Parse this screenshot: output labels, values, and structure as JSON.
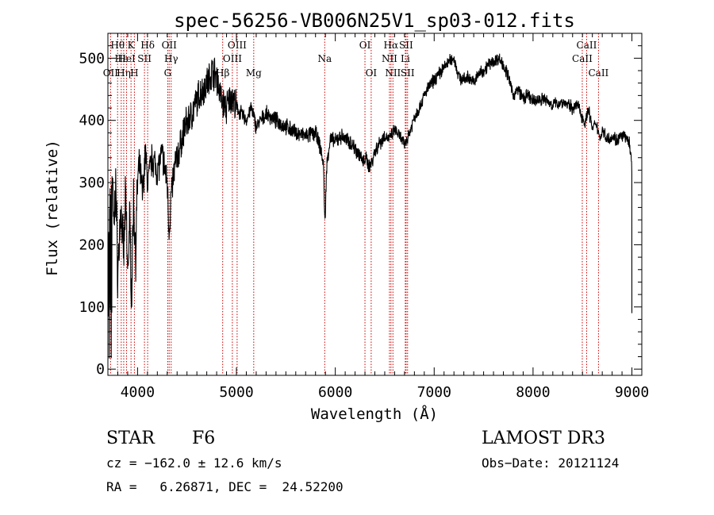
{
  "chart_data": {
    "type": "line",
    "title": "spec-56256-VB006N25V1_sp03-012.fits",
    "xlabel": "Wavelength (Å)",
    "ylabel": "Flux (relative)",
    "xlim": [
      3700,
      9100
    ],
    "ylim": [
      -10,
      540
    ],
    "x_ticks": [
      4000,
      5000,
      6000,
      7000,
      8000,
      9000
    ],
    "y_ticks": [
      0,
      100,
      200,
      300,
      400,
      500
    ],
    "spectrum_anchors": [
      [
        3700,
        60
      ],
      [
        3720,
        300
      ],
      [
        3740,
        330
      ],
      [
        3760,
        220
      ],
      [
        3780,
        300
      ],
      [
        3800,
        150
      ],
      [
        3830,
        260
      ],
      [
        3860,
        180
      ],
      [
        3880,
        280
      ],
      [
        3900,
        150
      ],
      [
        3920,
        240
      ],
      [
        3940,
        120
      ],
      [
        3960,
        280
      ],
      [
        3980,
        180
      ],
      [
        4000,
        300
      ],
      [
        4020,
        330
      ],
      [
        4050,
        280
      ],
      [
        4080,
        350
      ],
      [
        4100,
        300
      ],
      [
        4150,
        340
      ],
      [
        4200,
        320
      ],
      [
        4250,
        345
      ],
      [
        4300,
        300
      ],
      [
        4320,
        220
      ],
      [
        4340,
        280
      ],
      [
        4380,
        330
      ],
      [
        4420,
        350
      ],
      [
        4480,
        390
      ],
      [
        4550,
        410
      ],
      [
        4620,
        440
      ],
      [
        4700,
        460
      ],
      [
        4760,
        480
      ],
      [
        4800,
        470
      ],
      [
        4850,
        430
      ],
      [
        4900,
        420
      ],
      [
        4950,
        440
      ],
      [
        5000,
        420
      ],
      [
        5050,
        410
      ],
      [
        5100,
        400
      ],
      [
        5150,
        420
      ],
      [
        5200,
        390
      ],
      [
        5300,
        410
      ],
      [
        5400,
        400
      ],
      [
        5500,
        390
      ],
      [
        5600,
        380
      ],
      [
        5700,
        375
      ],
      [
        5800,
        380
      ],
      [
        5850,
        355
      ],
      [
        5880,
        330
      ],
      [
        5895,
        230
      ],
      [
        5905,
        290
      ],
      [
        5920,
        340
      ],
      [
        5950,
        370
      ],
      [
        6000,
        365
      ],
      [
        6050,
        375
      ],
      [
        6100,
        370
      ],
      [
        6150,
        365
      ],
      [
        6200,
        355
      ],
      [
        6250,
        345
      ],
      [
        6280,
        330
      ],
      [
        6300,
        340
      ],
      [
        6350,
        325
      ],
      [
        6400,
        350
      ],
      [
        6450,
        365
      ],
      [
        6500,
        375
      ],
      [
        6550,
        370
      ],
      [
        6600,
        385
      ],
      [
        6650,
        375
      ],
      [
        6700,
        360
      ],
      [
        6750,
        380
      ],
      [
        6800,
        405
      ],
      [
        6850,
        420
      ],
      [
        6900,
        440
      ],
      [
        6950,
        455
      ],
      [
        7000,
        465
      ],
      [
        7050,
        475
      ],
      [
        7100,
        485
      ],
      [
        7150,
        495
      ],
      [
        7200,
        500
      ],
      [
        7250,
        470
      ],
      [
        7300,
        465
      ],
      [
        7350,
        470
      ],
      [
        7400,
        460
      ],
      [
        7450,
        475
      ],
      [
        7500,
        480
      ],
      [
        7550,
        490
      ],
      [
        7600,
        495
      ],
      [
        7650,
        500
      ],
      [
        7700,
        490
      ],
      [
        7750,
        470
      ],
      [
        7800,
        440
      ],
      [
        7850,
        450
      ],
      [
        7900,
        435
      ],
      [
        7950,
        440
      ],
      [
        8000,
        430
      ],
      [
        8100,
        435
      ],
      [
        8200,
        425
      ],
      [
        8300,
        430
      ],
      [
        8400,
        420
      ],
      [
        8450,
        425
      ],
      [
        8500,
        405
      ],
      [
        8530,
        395
      ],
      [
        8560,
        420
      ],
      [
        8600,
        385
      ],
      [
        8640,
        395
      ],
      [
        8680,
        370
      ],
      [
        8700,
        385
      ],
      [
        8750,
        370
      ],
      [
        8800,
        375
      ],
      [
        8850,
        368
      ],
      [
        8900,
        375
      ],
      [
        8950,
        370
      ],
      [
        8980,
        360
      ],
      [
        9000,
        320
      ]
    ],
    "spectral_lines": [
      {
        "name": "Hθ",
        "wavelength": 3798,
        "row": 1
      },
      {
        "name": "K",
        "wavelength": 3934,
        "row": 1
      },
      {
        "name": "Hδ",
        "wavelength": 4102,
        "row": 1
      },
      {
        "name": "OII",
        "wavelength": 4320,
        "row": 1
      },
      {
        "name": "OIII",
        "wavelength": 5007,
        "row": 1
      },
      {
        "name": "OI",
        "wavelength": 6300,
        "row": 1
      },
      {
        "name": "Hα",
        "wavelength": 6563,
        "row": 1
      },
      {
        "name": "SII",
        "wavelength": 6716,
        "row": 1
      },
      {
        "name": "CaII",
        "wavelength": 8542,
        "row": 1
      },
      {
        "name": "Hε",
        "wavelength": 3835,
        "row": 2
      },
      {
        "name": "HeI",
        "wavelength": 3889,
        "row": 2
      },
      {
        "name": "SII",
        "wavelength": 4070,
        "row": 2
      },
      {
        "name": "Hγ",
        "wavelength": 4340,
        "row": 2
      },
      {
        "name": "OIII",
        "wavelength": 4959,
        "row": 2
      },
      {
        "name": "Na",
        "wavelength": 5893,
        "row": 2
      },
      {
        "name": "NII",
        "wavelength": 6548,
        "row": 2
      },
      {
        "name": "Li",
        "wavelength": 6708,
        "row": 2
      },
      {
        "name": "CaII",
        "wavelength": 8498,
        "row": 2
      },
      {
        "name": "OII",
        "wavelength": 3727,
        "row": 3
      },
      {
        "name": "Hη",
        "wavelength": 3860,
        "row": 3
      },
      {
        "name": "H",
        "wavelength": 3968,
        "row": 3
      },
      {
        "name": "G",
        "wavelength": 4305,
        "row": 3
      },
      {
        "name": "Hβ",
        "wavelength": 4861,
        "row": 3
      },
      {
        "name": "Mg",
        "wavelength": 5175,
        "row": 3
      },
      {
        "name": "OI",
        "wavelength": 6363,
        "row": 3
      },
      {
        "name": "NII",
        "wavelength": 6583,
        "row": 3
      },
      {
        "name": "SII",
        "wavelength": 6731,
        "row": 3
      },
      {
        "name": "CaII",
        "wavelength": 8662,
        "row": 3
      }
    ],
    "info": {
      "class_label": "STAR",
      "subclass": "F6",
      "survey": "LAMOST DR3",
      "redshift": "cz = −162.0 ± 12.6 km/s",
      "obs_date": "Obs−Date: 20121124",
      "coords": "RA =   6.26871, DEC =  24.52200"
    },
    "colors": {
      "spectrum": "#000000",
      "line_marker": "#cc0000",
      "axes": "#000000"
    }
  }
}
